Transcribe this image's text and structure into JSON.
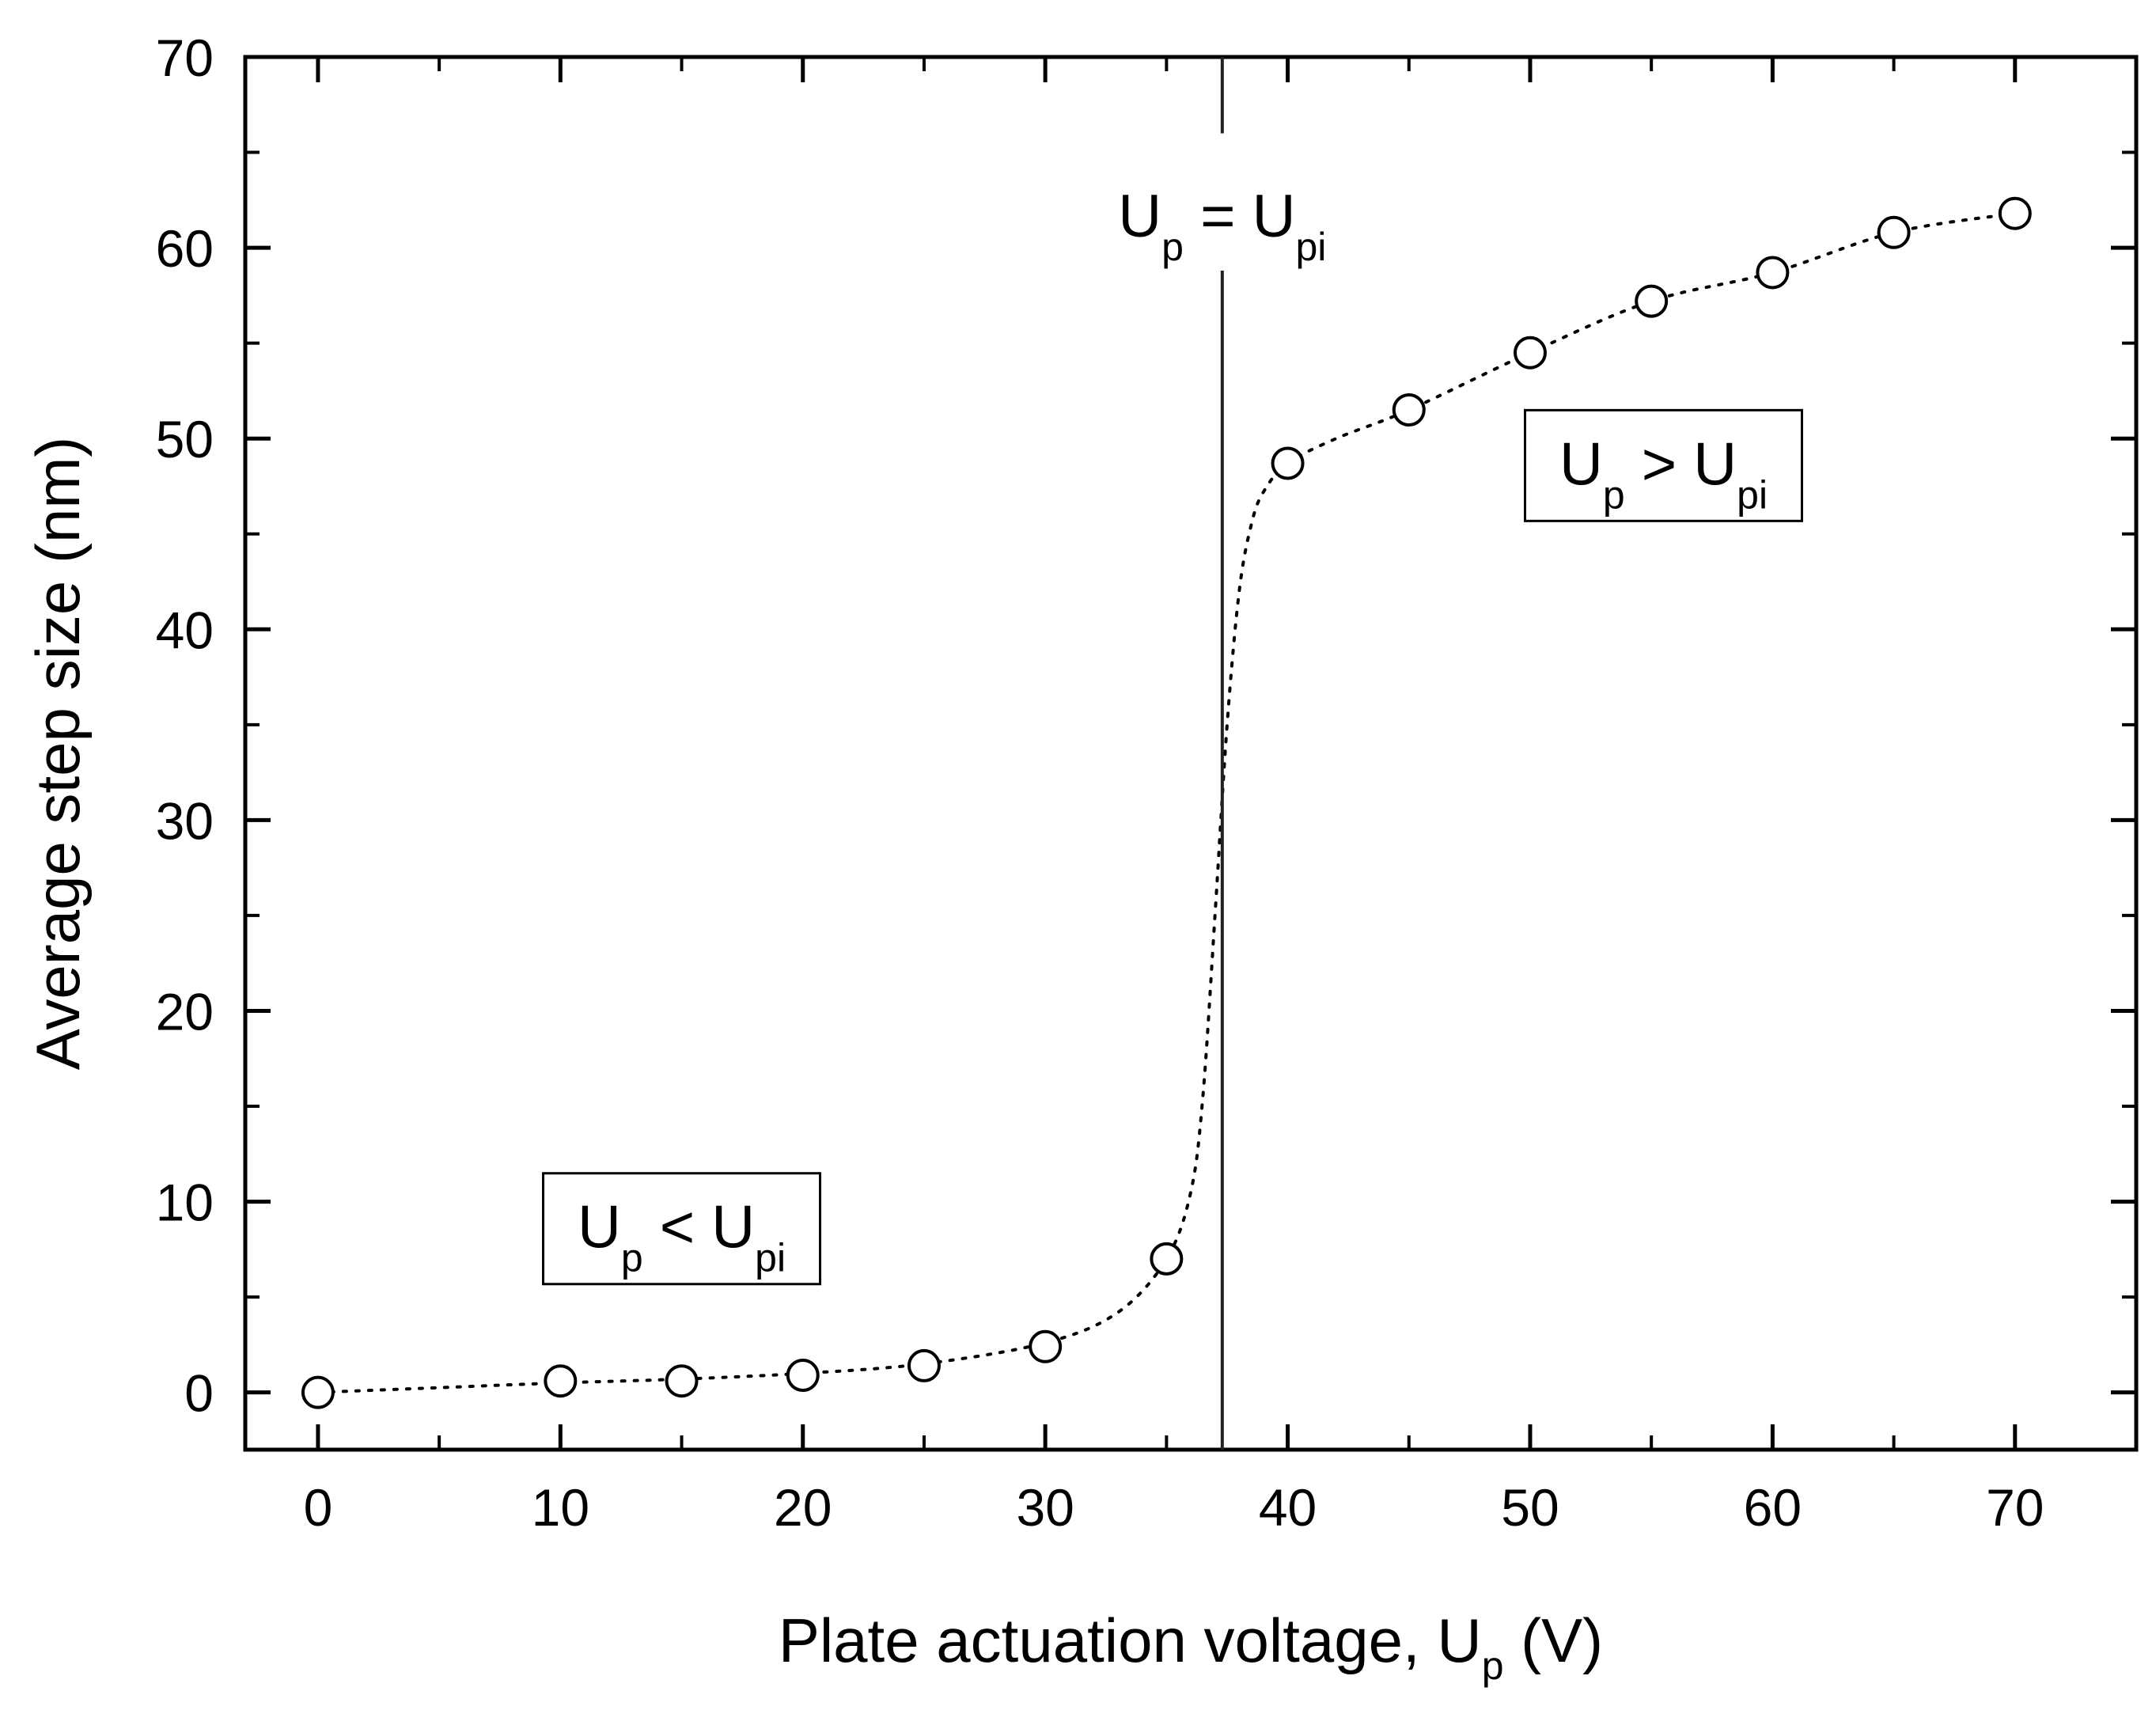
{
  "chart_data": {
    "type": "scatter",
    "xlabel": {
      "main": "Plate actuation voltage, U",
      "sub": "p",
      "tail": " (V)"
    },
    "ylabel": "Average step size (nm)",
    "xlim": [
      -3,
      75
    ],
    "ylim": [
      -3,
      70
    ],
    "x_ticks": [
      0,
      10,
      20,
      30,
      40,
      50,
      60,
      70
    ],
    "x_tick_labels": [
      "0",
      "10",
      "20",
      "30",
      "40",
      "50",
      "60",
      "70"
    ],
    "y_ticks": [
      0,
      10,
      20,
      30,
      40,
      50,
      60,
      70
    ],
    "y_tick_labels": [
      "0",
      "10",
      "20",
      "30",
      "40",
      "50",
      "60",
      "70"
    ],
    "grid": false,
    "series": [
      {
        "marker": "open-circle",
        "x": [
          0,
          10,
          15,
          20,
          25,
          30,
          35,
          40,
          45,
          50,
          55,
          60,
          65,
          70
        ],
        "y": [
          0,
          0.6,
          0.6,
          0.9,
          1.4,
          2.4,
          7.0,
          48.7,
          51.5,
          54.5,
          57.2,
          58.7,
          60.8,
          61.8
        ]
      }
    ],
    "fit_curve": {
      "style": "dotted",
      "x": [
        0,
        5,
        10,
        15,
        20,
        25,
        30,
        33,
        35,
        36,
        36.5,
        37,
        37.5,
        38,
        38.5,
        39,
        40,
        42,
        45,
        50,
        55,
        60,
        65,
        70
      ],
      "y": [
        0,
        0.25,
        0.5,
        0.7,
        1.0,
        1.5,
        2.6,
        4.2,
        7.0,
        10.5,
        15.5,
        25.0,
        35.0,
        42.0,
        45.5,
        47.2,
        48.7,
        50.0,
        51.5,
        54.5,
        57.2,
        58.7,
        60.8,
        61.8
      ]
    },
    "vertical_line": {
      "x": 37.3
    },
    "annotations": [
      {
        "U": "U",
        "Usub": "p",
        "op": " = U",
        "rhs_sub": "pi",
        "boxed": false,
        "x": 37.3,
        "y": 61.5
      },
      {
        "U": "U",
        "Usub": "p",
        "op": " < U",
        "rhs_sub": "pi",
        "boxed": true,
        "x": 15,
        "y": 8.5
      },
      {
        "U": "U",
        "Usub": "p",
        "op": " > U",
        "rhs_sub": "pi",
        "boxed": true,
        "x": 55.5,
        "y": 48.5
      }
    ]
  }
}
